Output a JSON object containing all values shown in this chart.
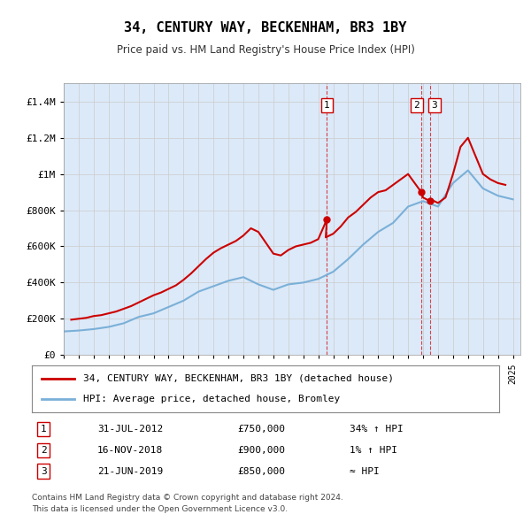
{
  "title": "34, CENTURY WAY, BECKENHAM, BR3 1BY",
  "subtitle": "Price paid vs. HM Land Registry's House Price Index (HPI)",
  "legend_line1": "34, CENTURY WAY, BECKENHAM, BR3 1BY (detached house)",
  "legend_line2": "HPI: Average price, detached house, Bromley",
  "footer1": "Contains HM Land Registry data © Crown copyright and database right 2024.",
  "footer2": "This data is licensed under the Open Government Licence v3.0.",
  "transactions": [
    {
      "num": 1,
      "date": "31-JUL-2012",
      "price": "£750,000",
      "rel": "34% ↑ HPI",
      "year": 2012.58
    },
    {
      "num": 2,
      "date": "16-NOV-2018",
      "price": "£900,000",
      "rel": "1% ↑ HPI",
      "year": 2018.88
    },
    {
      "num": 3,
      "date": "21-JUN-2019",
      "price": "£850,000",
      "rel": "≈ HPI",
      "year": 2019.47
    }
  ],
  "hpi_years": [
    1995,
    1996,
    1997,
    1998,
    1999,
    2000,
    2001,
    2002,
    2003,
    2004,
    2005,
    2006,
    2007,
    2008,
    2009,
    2010,
    2011,
    2012,
    2013,
    2014,
    2015,
    2016,
    2017,
    2018,
    2019,
    2020,
    2021,
    2022,
    2023,
    2024,
    2025
  ],
  "hpi_values": [
    130000,
    135000,
    143000,
    155000,
    175000,
    210000,
    230000,
    265000,
    300000,
    350000,
    380000,
    410000,
    430000,
    390000,
    360000,
    390000,
    400000,
    420000,
    460000,
    530000,
    610000,
    680000,
    730000,
    820000,
    850000,
    820000,
    950000,
    1020000,
    920000,
    880000,
    860000
  ],
  "price_years": [
    1995.5,
    1996,
    1996.5,
    1997,
    1997.5,
    1998,
    1998.5,
    1999,
    1999.5,
    2000,
    2000.5,
    2001,
    2001.5,
    2002,
    2002.5,
    2003,
    2003.5,
    2004,
    2004.5,
    2005,
    2005.5,
    2006,
    2006.5,
    2007,
    2007.5,
    2008,
    2008.5,
    2009,
    2009.5,
    2010,
    2010.5,
    2011,
    2011.5,
    2012,
    2012.58,
    2012.5,
    2013,
    2013.5,
    2014,
    2014.5,
    2015,
    2015.5,
    2016,
    2016.5,
    2017,
    2017.5,
    2018,
    2018.88,
    2019,
    2019.47,
    2019.5,
    2020,
    2020.5,
    2021,
    2021.5,
    2022,
    2022.5,
    2023,
    2023.5,
    2024,
    2024.5
  ],
  "price_values": [
    195000,
    200000,
    205000,
    215000,
    220000,
    230000,
    240000,
    255000,
    270000,
    290000,
    310000,
    330000,
    345000,
    365000,
    385000,
    415000,
    450000,
    490000,
    530000,
    565000,
    590000,
    610000,
    630000,
    660000,
    700000,
    680000,
    620000,
    560000,
    550000,
    580000,
    600000,
    610000,
    620000,
    640000,
    750000,
    650000,
    670000,
    710000,
    760000,
    790000,
    830000,
    870000,
    900000,
    910000,
    940000,
    970000,
    1000000,
    900000,
    870000,
    850000,
    860000,
    840000,
    870000,
    1000000,
    1150000,
    1200000,
    1100000,
    1000000,
    970000,
    950000,
    940000
  ],
  "ylim": [
    0,
    1500000
  ],
  "xlim_start": 1995,
  "xlim_end": 2025.5,
  "bg_color": "#dce9f8",
  "plot_bg": "#ffffff",
  "red_color": "#cc0000",
  "blue_color": "#7ab0d8",
  "grid_color": "#cccccc"
}
